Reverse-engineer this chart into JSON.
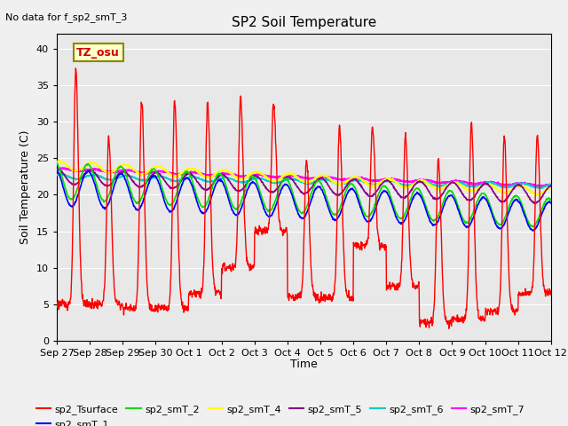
{
  "title": "SP2 Soil Temperature",
  "ylabel": "Soil Temperature (C)",
  "xlabel": "Time",
  "note": "No data for f_sp2_smT_3",
  "tz_label": "TZ_osu",
  "ylim": [
    0,
    42
  ],
  "yticks": [
    0,
    5,
    10,
    15,
    20,
    25,
    30,
    35,
    40
  ],
  "fig_bg": "#f0f0f0",
  "plot_bg": "#e8e8e8",
  "line_colors": {
    "sp2_Tsurface": "#ff0000",
    "sp2_smT_1": "#0000ff",
    "sp2_smT_2": "#00dd00",
    "sp2_smT_4": "#ffff00",
    "sp2_smT_5": "#880088",
    "sp2_smT_6": "#00cccc",
    "sp2_smT_7": "#ff00ff"
  },
  "xticklabels": [
    "Sep 27",
    "Sep 28",
    "Sep 29",
    "Sep 30",
    "Oct 1",
    "Oct 2",
    "Oct 3",
    "Oct 4",
    "Oct 5",
    "Oct 6",
    "Oct 7",
    "Oct 8",
    "Oct 9",
    "Oct 10",
    "Oct 11",
    "Oct 12"
  ],
  "num_days": 15
}
